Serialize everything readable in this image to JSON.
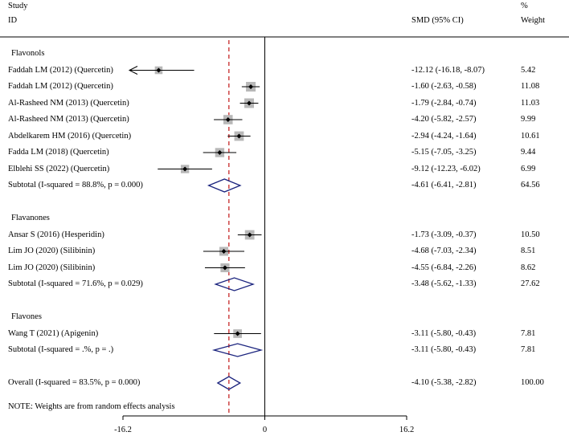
{
  "chart_data": {
    "type": "forest",
    "header": {
      "study_top": "Study",
      "study_bottom": "ID",
      "effect_label": "SMD (95% CI)",
      "weight_top": "%",
      "weight_bottom": "Weight"
    },
    "x_axis": {
      "range": [
        -16.2,
        16.2
      ],
      "ticks": [
        "-16.2",
        "0",
        "16.2"
      ],
      "null_line": 0
    },
    "overall_line": -4.1,
    "rows": [
      {
        "kind": "group",
        "label": "Flavonols"
      },
      {
        "kind": "study",
        "label": "Faddah LM (2012) (Quercetin)",
        "est": -12.12,
        "lo": -16.18,
        "hi": -8.07,
        "ci": "-12.12 (-16.18, -8.07)",
        "weight": "5.42",
        "w": 5.42,
        "arrow_left": true
      },
      {
        "kind": "study",
        "label": "Faddah LM (2012) (Quercetin)",
        "est": -1.6,
        "lo": -2.63,
        "hi": -0.58,
        "ci": "-1.60 (-2.63, -0.58)",
        "weight": "11.08",
        "w": 11.08
      },
      {
        "kind": "study",
        "label": "Al-Rasheed NM (2013) (Quercetin)",
        "est": -1.79,
        "lo": -2.84,
        "hi": -0.74,
        "ci": "-1.79 (-2.84, -0.74)",
        "weight": "11.03",
        "w": 11.03
      },
      {
        "kind": "study",
        "label": "Al-Rasheed NM (2013) (Quercetin)",
        "est": -4.2,
        "lo": -5.82,
        "hi": -2.57,
        "ci": "-4.20 (-5.82, -2.57)",
        "weight": "9.99",
        "w": 9.99
      },
      {
        "kind": "study",
        "label": "Abdelkarem HM (2016) (Quercetin)",
        "est": -2.94,
        "lo": -4.24,
        "hi": -1.64,
        "ci": "-2.94 (-4.24, -1.64)",
        "weight": "10.61",
        "w": 10.61
      },
      {
        "kind": "study",
        "label": "Fadda LM (2018) (Quercetin)",
        "est": -5.15,
        "lo": -7.05,
        "hi": -3.25,
        "ci": "-5.15 (-7.05, -3.25)",
        "weight": "9.44",
        "w": 9.44
      },
      {
        "kind": "study",
        "label": "Elblehi SS (2022) (Quercetin)",
        "est": -9.12,
        "lo": -12.23,
        "hi": -6.02,
        "ci": "-9.12 (-12.23, -6.02)",
        "weight": "6.99",
        "w": 6.99
      },
      {
        "kind": "subtotal",
        "label": "Subtotal  (I-squared = 88.8%, p = 0.000)",
        "est": -4.61,
        "lo": -6.41,
        "hi": -2.81,
        "ci": "-4.61 (-6.41, -2.81)",
        "weight": "64.56"
      },
      {
        "kind": "blank"
      },
      {
        "kind": "group",
        "label": "Flavanones"
      },
      {
        "kind": "study",
        "label": "Ansar S (2016) (Hesperidin)",
        "est": -1.73,
        "lo": -3.09,
        "hi": -0.37,
        "ci": "-1.73 (-3.09, -0.37)",
        "weight": "10.50",
        "w": 10.5
      },
      {
        "kind": "study",
        "label": "Lim JO (2020) (Silibinin)",
        "est": -4.68,
        "lo": -7.03,
        "hi": -2.34,
        "ci": "-4.68 (-7.03, -2.34)",
        "weight": "8.51",
        "w": 8.51
      },
      {
        "kind": "study",
        "label": "Lim JO (2020) (Silibinin)",
        "est": -4.55,
        "lo": -6.84,
        "hi": -2.26,
        "ci": "-4.55 (-6.84, -2.26)",
        "weight": "8.62",
        "w": 8.62
      },
      {
        "kind": "subtotal",
        "label": "Subtotal  (I-squared = 71.6%, p = 0.029)",
        "est": -3.48,
        "lo": -5.62,
        "hi": -1.33,
        "ci": "-3.48 (-5.62, -1.33)",
        "weight": "27.62"
      },
      {
        "kind": "blank"
      },
      {
        "kind": "group",
        "label": "Flavones"
      },
      {
        "kind": "study",
        "label": "Wang T (2021) (Apigenin)",
        "est": -3.11,
        "lo": -5.8,
        "hi": -0.43,
        "ci": "-3.11 (-5.80, -0.43)",
        "weight": "7.81",
        "w": 7.81
      },
      {
        "kind": "subtotal",
        "label": "Subtotal  (I-squared = .%, p = .)",
        "est": -3.11,
        "lo": -5.8,
        "hi": -0.43,
        "ci": "-3.11 (-5.80, -0.43)",
        "weight": "7.81"
      },
      {
        "kind": "blank"
      },
      {
        "kind": "overall",
        "label": "Overall  (I-squared = 83.5%, p = 0.000)",
        "est": -4.1,
        "lo": -5.38,
        "hi": -2.82,
        "ci": "-4.10 (-5.38, -2.82)",
        "weight": "100.00"
      }
    ],
    "note": "NOTE: Weights are from random effects analysis",
    "colors": {
      "diamond": "#1a237e",
      "overall_line": "#c62828",
      "box": "#b8b8b8",
      "line": "#000000"
    }
  }
}
